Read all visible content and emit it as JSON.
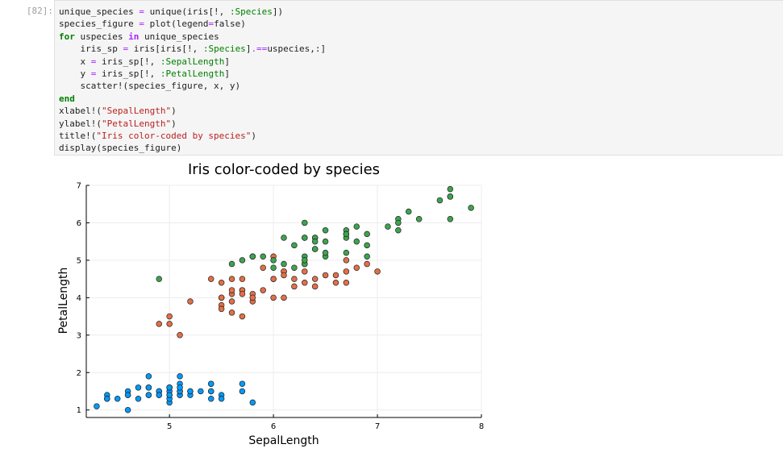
{
  "cell": {
    "prompt": "[82]:",
    "code_lines": [
      "unique_species = unique(iris[!, :Species])",
      "species_figure = plot(legend=false)",
      "for uspecies in unique_species",
      "    iris_sp = iris[iris[!, :Species].==uspecies,:]",
      "    x = iris_sp[!, :SepalLength]",
      "    y = iris_sp[!, :PetalLength]",
      "    scatter!(species_figure, x, y)",
      "end",
      "xlabel!(\"SepalLength\")",
      "ylabel!(\"PetalLength\")",
      "title!(\"Iris color-coded by species\")",
      "display(species_figure)"
    ]
  },
  "chart_data": {
    "type": "scatter",
    "title": "Iris color-coded by species",
    "xlabel": "SepalLength",
    "ylabel": "PetalLength",
    "xlim": [
      4.2,
      8.0
    ],
    "ylim": [
      0.8,
      7.0
    ],
    "xticks": [
      "5",
      "6",
      "7",
      "8"
    ],
    "yticks": [
      "1",
      "2",
      "3",
      "4",
      "5",
      "6",
      "7"
    ],
    "grid": true,
    "legend": "none",
    "series": [
      {
        "color": "#009AFA",
        "points": [
          [
            5.1,
            1.4
          ],
          [
            4.9,
            1.4
          ],
          [
            4.7,
            1.3
          ],
          [
            4.6,
            1.5
          ],
          [
            5.0,
            1.4
          ],
          [
            5.4,
            1.7
          ],
          [
            4.6,
            1.4
          ],
          [
            5.0,
            1.5
          ],
          [
            4.4,
            1.4
          ],
          [
            4.9,
            1.5
          ],
          [
            5.4,
            1.5
          ],
          [
            4.8,
            1.6
          ],
          [
            4.8,
            1.4
          ],
          [
            4.3,
            1.1
          ],
          [
            5.8,
            1.2
          ],
          [
            5.7,
            1.5
          ],
          [
            5.4,
            1.3
          ],
          [
            5.1,
            1.4
          ],
          [
            5.7,
            1.7
          ],
          [
            5.1,
            1.5
          ],
          [
            5.4,
            1.7
          ],
          [
            5.1,
            1.5
          ],
          [
            4.6,
            1.0
          ],
          [
            5.1,
            1.7
          ],
          [
            4.8,
            1.9
          ],
          [
            5.0,
            1.6
          ],
          [
            5.0,
            1.6
          ],
          [
            5.2,
            1.5
          ],
          [
            5.2,
            1.4
          ],
          [
            4.7,
            1.6
          ],
          [
            4.8,
            1.6
          ],
          [
            5.4,
            1.5
          ],
          [
            5.2,
            1.5
          ],
          [
            5.5,
            1.4
          ],
          [
            4.9,
            1.5
          ],
          [
            5.0,
            1.2
          ],
          [
            5.5,
            1.3
          ],
          [
            4.9,
            1.4
          ],
          [
            4.4,
            1.3
          ],
          [
            5.1,
            1.5
          ],
          [
            5.0,
            1.3
          ],
          [
            4.5,
            1.3
          ],
          [
            4.4,
            1.3
          ],
          [
            5.0,
            1.6
          ],
          [
            5.1,
            1.9
          ],
          [
            4.8,
            1.4
          ],
          [
            5.1,
            1.6
          ],
          [
            4.6,
            1.4
          ],
          [
            5.3,
            1.5
          ],
          [
            5.0,
            1.4
          ]
        ]
      },
      {
        "color": "#E36F47",
        "points": [
          [
            7.0,
            4.7
          ],
          [
            6.4,
            4.5
          ],
          [
            6.9,
            4.9
          ],
          [
            5.5,
            4.0
          ],
          [
            6.5,
            4.6
          ],
          [
            5.7,
            4.5
          ],
          [
            6.3,
            4.7
          ],
          [
            4.9,
            3.3
          ],
          [
            6.6,
            4.6
          ],
          [
            5.2,
            3.9
          ],
          [
            5.0,
            3.5
          ],
          [
            5.9,
            4.2
          ],
          [
            6.0,
            4.0
          ],
          [
            6.1,
            4.7
          ],
          [
            5.6,
            3.6
          ],
          [
            6.7,
            4.4
          ],
          [
            5.6,
            4.5
          ],
          [
            5.8,
            4.1
          ],
          [
            6.2,
            4.5
          ],
          [
            5.6,
            3.9
          ],
          [
            5.9,
            4.8
          ],
          [
            6.1,
            4.0
          ],
          [
            6.3,
            4.9
          ],
          [
            6.1,
            4.7
          ],
          [
            6.4,
            4.3
          ],
          [
            6.6,
            4.4
          ],
          [
            6.8,
            4.8
          ],
          [
            6.7,
            5.0
          ],
          [
            6.0,
            4.5
          ],
          [
            5.7,
            3.5
          ],
          [
            5.5,
            3.8
          ],
          [
            5.5,
            3.7
          ],
          [
            5.8,
            3.9
          ],
          [
            6.0,
            5.1
          ],
          [
            5.4,
            4.5
          ],
          [
            6.0,
            4.5
          ],
          [
            6.7,
            4.7
          ],
          [
            6.3,
            4.4
          ],
          [
            5.6,
            4.1
          ],
          [
            5.5,
            4.0
          ],
          [
            5.5,
            4.4
          ],
          [
            6.1,
            4.6
          ],
          [
            5.8,
            4.0
          ],
          [
            5.0,
            3.3
          ],
          [
            5.6,
            4.2
          ],
          [
            5.7,
            4.2
          ],
          [
            5.7,
            4.2
          ],
          [
            6.2,
            4.3
          ],
          [
            5.1,
            3.0
          ],
          [
            5.7,
            4.1
          ]
        ]
      },
      {
        "color": "#3EA44E",
        "points": [
          [
            6.3,
            6.0
          ],
          [
            5.8,
            5.1
          ],
          [
            7.1,
            5.9
          ],
          [
            6.3,
            5.6
          ],
          [
            6.5,
            5.8
          ],
          [
            7.6,
            6.6
          ],
          [
            4.9,
            4.5
          ],
          [
            7.3,
            6.3
          ],
          [
            6.7,
            5.8
          ],
          [
            7.2,
            6.1
          ],
          [
            6.5,
            5.1
          ],
          [
            6.4,
            5.3
          ],
          [
            6.8,
            5.5
          ],
          [
            5.7,
            5.0
          ],
          [
            5.8,
            5.1
          ],
          [
            6.4,
            5.3
          ],
          [
            6.5,
            5.5
          ],
          [
            7.7,
            6.7
          ],
          [
            7.7,
            6.9
          ],
          [
            6.0,
            5.0
          ],
          [
            6.9,
            5.7
          ],
          [
            5.6,
            4.9
          ],
          [
            7.7,
            6.7
          ],
          [
            6.3,
            4.9
          ],
          [
            6.7,
            5.7
          ],
          [
            7.2,
            6.0
          ],
          [
            6.2,
            4.8
          ],
          [
            6.1,
            4.9
          ],
          [
            6.4,
            5.6
          ],
          [
            7.2,
            5.8
          ],
          [
            7.4,
            6.1
          ],
          [
            7.9,
            6.4
          ],
          [
            6.4,
            5.6
          ],
          [
            6.3,
            5.1
          ],
          [
            6.1,
            5.6
          ],
          [
            7.7,
            6.1
          ],
          [
            6.3,
            5.6
          ],
          [
            6.4,
            5.5
          ],
          [
            6.0,
            4.8
          ],
          [
            6.9,
            5.4
          ],
          [
            6.7,
            5.6
          ],
          [
            6.9,
            5.1
          ],
          [
            5.8,
            5.1
          ],
          [
            6.8,
            5.9
          ],
          [
            6.7,
            5.7
          ],
          [
            6.7,
            5.2
          ],
          [
            6.3,
            5.0
          ],
          [
            6.5,
            5.2
          ],
          [
            6.2,
            5.4
          ],
          [
            5.9,
            5.1
          ]
        ]
      }
    ]
  }
}
